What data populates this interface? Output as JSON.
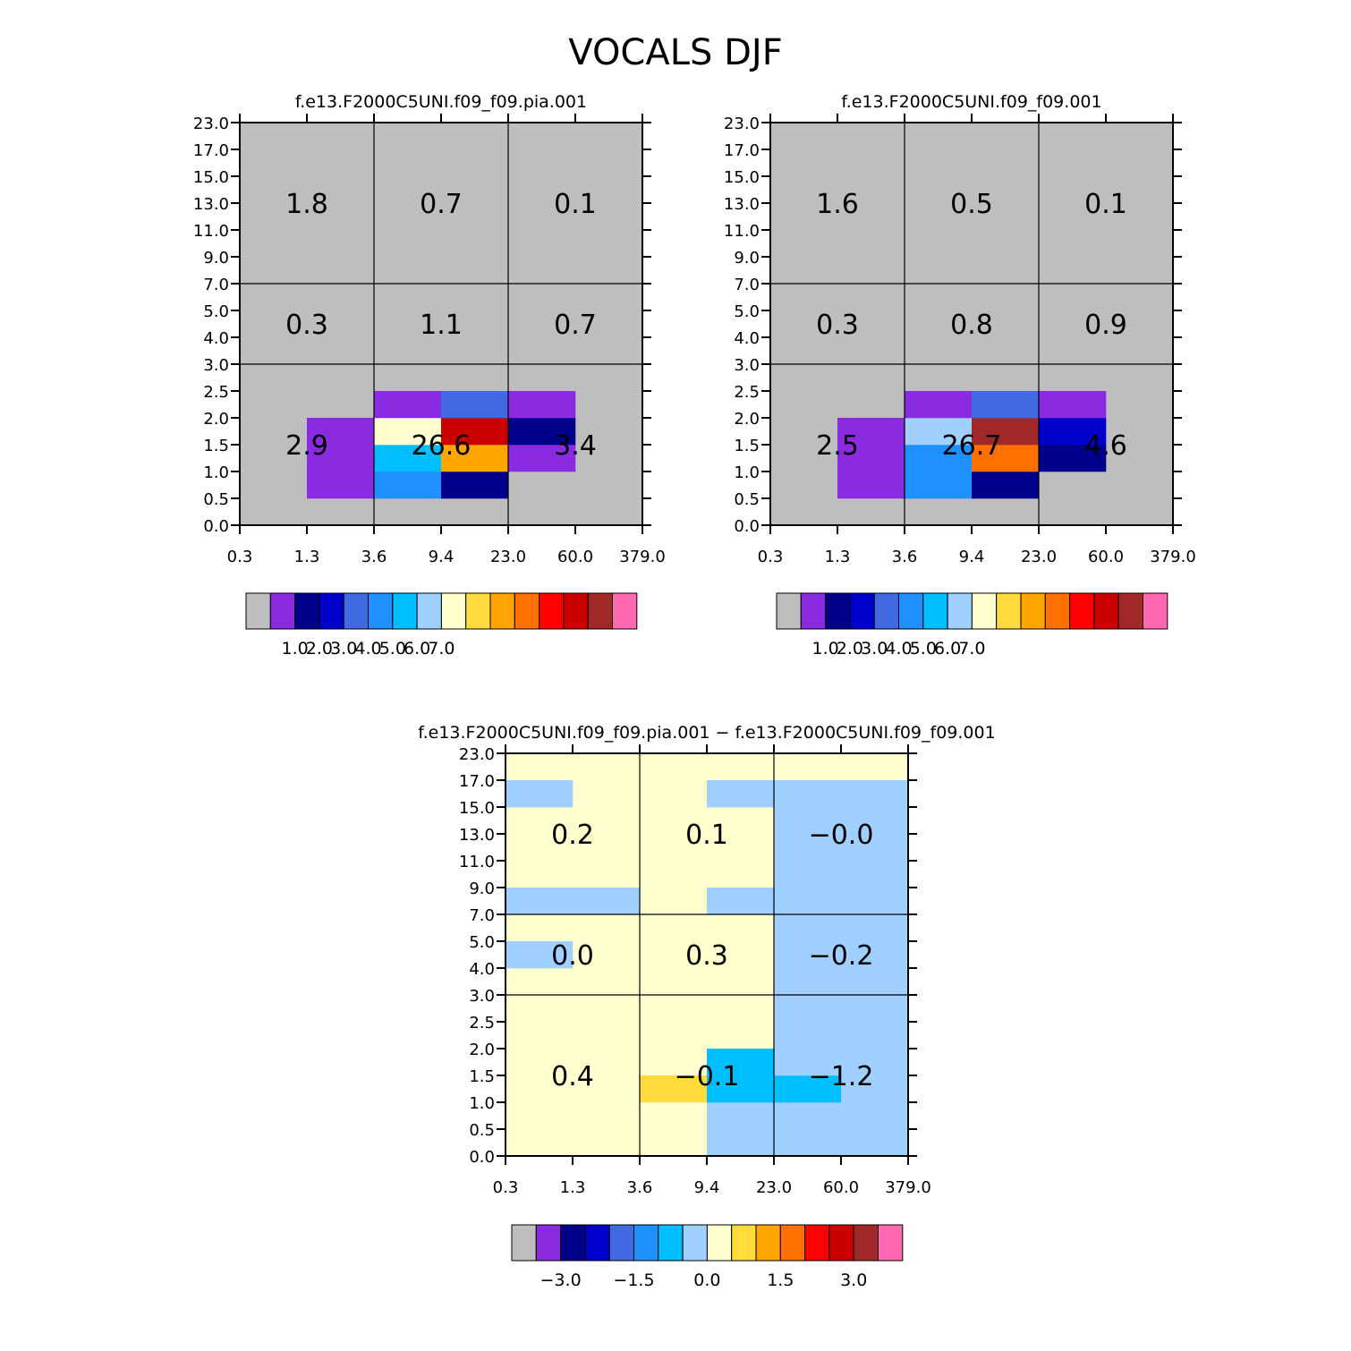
{
  "title": "VOCALS DJF",
  "chart_data": [
    {
      "type": "heatmap",
      "title": "f.e13.F2000C5UNI.f09_f09.pia.001",
      "x_bin_edges": [
        "0.3",
        "1.3",
        "3.6",
        "9.4",
        "23.0",
        "60.0",
        "379.0"
      ],
      "y_bin_edges": [
        "0.0",
        "0.5",
        "1.0",
        "1.5",
        "2.0",
        "2.5",
        "3.0",
        "4.0",
        "5.0",
        "7.0",
        "9.0",
        "11.0",
        "13.0",
        "15.0",
        "17.0",
        "23.0"
      ],
      "grid_lines": {
        "x": [
          2,
          4
        ],
        "y": [
          6,
          9
        ]
      },
      "region_values": [
        {
          "col": 0,
          "row": 2,
          "label": "1.8"
        },
        {
          "col": 1,
          "row": 2,
          "label": "0.7"
        },
        {
          "col": 2,
          "row": 2,
          "label": "0.1"
        },
        {
          "col": 0,
          "row": 1,
          "label": "0.3"
        },
        {
          "col": 1,
          "row": 1,
          "label": "1.1"
        },
        {
          "col": 2,
          "row": 1,
          "label": "0.7"
        },
        {
          "col": 0,
          "row": 0,
          "label": "2.9"
        },
        {
          "col": 1,
          "row": 0,
          "label": "26.6"
        },
        {
          "col": 2,
          "row": 0,
          "label": "3.4"
        }
      ],
      "background_color": 0,
      "cells": [
        {
          "x": 1,
          "y": 1,
          "c": 1
        },
        {
          "x": 1,
          "y": 2,
          "c": 1
        },
        {
          "x": 1,
          "y": 3,
          "c": 1
        },
        {
          "x": 2,
          "y": 1,
          "c": 5
        },
        {
          "x": 2,
          "y": 2,
          "c": 6
        },
        {
          "x": 2,
          "y": 3,
          "c": 8
        },
        {
          "x": 2,
          "y": 4,
          "c": 1
        },
        {
          "x": 3,
          "y": 1,
          "c": 2
        },
        {
          "x": 3,
          "y": 2,
          "c": 10
        },
        {
          "x": 3,
          "y": 3,
          "c": 13
        },
        {
          "x": 3,
          "y": 4,
          "c": 4
        },
        {
          "x": 4,
          "y": 2,
          "c": 1
        },
        {
          "x": 4,
          "y": 3,
          "c": 2
        },
        {
          "x": 4,
          "y": 4,
          "c": 1
        }
      ],
      "colorbar": {
        "colors": [
          "#bebebe",
          "#8a2be2",
          "#00008b",
          "#0000cd",
          "#4169e1",
          "#1e90ff",
          "#00bfff",
          "#a0d0ff",
          "#ffffd0",
          "#ffdc3c",
          "#ffa500",
          "#ff7000",
          "#ff0000",
          "#cd0000",
          "#a02828",
          "#ff69b4"
        ],
        "labels": [
          {
            "boundary": 2,
            "text": "1.0"
          },
          {
            "boundary": 3,
            "text": "2.0"
          },
          {
            "boundary": 4,
            "text": "3.0"
          },
          {
            "boundary": 5,
            "text": "4.0"
          },
          {
            "boundary": 6,
            "text": "5.0"
          },
          {
            "boundary": 7,
            "text": "6.0"
          },
          {
            "boundary": 8,
            "text": "7.0"
          }
        ]
      }
    },
    {
      "type": "heatmap",
      "title": "f.e13.F2000C5UNI.f09_f09.001",
      "x_bin_edges": [
        "0.3",
        "1.3",
        "3.6",
        "9.4",
        "23.0",
        "60.0",
        "379.0"
      ],
      "y_bin_edges": [
        "0.0",
        "0.5",
        "1.0",
        "1.5",
        "2.0",
        "2.5",
        "3.0",
        "4.0",
        "5.0",
        "7.0",
        "9.0",
        "11.0",
        "13.0",
        "15.0",
        "17.0",
        "23.0"
      ],
      "grid_lines": {
        "x": [
          2,
          4
        ],
        "y": [
          6,
          9
        ]
      },
      "region_values": [
        {
          "col": 0,
          "row": 2,
          "label": "1.6"
        },
        {
          "col": 1,
          "row": 2,
          "label": "0.5"
        },
        {
          "col": 2,
          "row": 2,
          "label": "0.1"
        },
        {
          "col": 0,
          "row": 1,
          "label": "0.3"
        },
        {
          "col": 1,
          "row": 1,
          "label": "0.8"
        },
        {
          "col": 2,
          "row": 1,
          "label": "0.9"
        },
        {
          "col": 0,
          "row": 0,
          "label": "2.5"
        },
        {
          "col": 1,
          "row": 0,
          "label": "26.7"
        },
        {
          "col": 2,
          "row": 0,
          "label": "4.6"
        }
      ],
      "background_color": 0,
      "cells": [
        {
          "x": 1,
          "y": 1,
          "c": 1
        },
        {
          "x": 1,
          "y": 2,
          "c": 1
        },
        {
          "x": 1,
          "y": 3,
          "c": 1
        },
        {
          "x": 2,
          "y": 1,
          "c": 5
        },
        {
          "x": 2,
          "y": 2,
          "c": 5
        },
        {
          "x": 2,
          "y": 3,
          "c": 7
        },
        {
          "x": 2,
          "y": 4,
          "c": 1
        },
        {
          "x": 3,
          "y": 1,
          "c": 2
        },
        {
          "x": 3,
          "y": 2,
          "c": 11
        },
        {
          "x": 3,
          "y": 3,
          "c": 14
        },
        {
          "x": 3,
          "y": 4,
          "c": 4
        },
        {
          "x": 4,
          "y": 2,
          "c": 2
        },
        {
          "x": 4,
          "y": 3,
          "c": 3
        },
        {
          "x": 4,
          "y": 4,
          "c": 1
        }
      ],
      "colorbar": {
        "colors": [
          "#bebebe",
          "#8a2be2",
          "#00008b",
          "#0000cd",
          "#4169e1",
          "#1e90ff",
          "#00bfff",
          "#a0d0ff",
          "#ffffd0",
          "#ffdc3c",
          "#ffa500",
          "#ff7000",
          "#ff0000",
          "#cd0000",
          "#a02828",
          "#ff69b4"
        ],
        "labels": [
          {
            "boundary": 2,
            "text": "1.0"
          },
          {
            "boundary": 3,
            "text": "2.0"
          },
          {
            "boundary": 4,
            "text": "3.0"
          },
          {
            "boundary": 5,
            "text": "4.0"
          },
          {
            "boundary": 6,
            "text": "5.0"
          },
          {
            "boundary": 7,
            "text": "6.0"
          },
          {
            "boundary": 8,
            "text": "7.0"
          }
        ]
      }
    },
    {
      "type": "heatmap",
      "title": "f.e13.F2000C5UNI.f09_f09.pia.001 − f.e13.F2000C5UNI.f09_f09.001",
      "x_bin_edges": [
        "0.3",
        "1.3",
        "3.6",
        "9.4",
        "23.0",
        "60.0",
        "379.0"
      ],
      "y_bin_edges": [
        "0.0",
        "0.5",
        "1.0",
        "1.5",
        "2.0",
        "2.5",
        "3.0",
        "4.0",
        "5.0",
        "7.0",
        "9.0",
        "11.0",
        "13.0",
        "15.0",
        "17.0",
        "23.0"
      ],
      "grid_lines": {
        "x": [
          2,
          4
        ],
        "y": [
          6,
          9
        ]
      },
      "region_values": [
        {
          "col": 0,
          "row": 2,
          "label": "0.2"
        },
        {
          "col": 1,
          "row": 2,
          "label": "0.1"
        },
        {
          "col": 2,
          "row": 2,
          "label": "−0.0"
        },
        {
          "col": 0,
          "row": 1,
          "label": "0.0"
        },
        {
          "col": 1,
          "row": 1,
          "label": "0.3"
        },
        {
          "col": 2,
          "row": 1,
          "label": "−0.2"
        },
        {
          "col": 0,
          "row": 0,
          "label": "0.4"
        },
        {
          "col": 1,
          "row": 0,
          "label": "−0.1"
        },
        {
          "col": 2,
          "row": 0,
          "label": "−1.2"
        }
      ],
      "background_color": 8,
      "cells": [
        {
          "x": 0,
          "y": 7,
          "c": 7
        },
        {
          "x": 0,
          "y": 9,
          "c": 7
        },
        {
          "x": 0,
          "y": 13,
          "c": 7
        },
        {
          "x": 1,
          "y": 9,
          "c": 7
        },
        {
          "x": 2,
          "y": 2,
          "c": 9
        },
        {
          "x": 3,
          "y": 0,
          "c": 7
        },
        {
          "x": 3,
          "y": 1,
          "c": 7
        },
        {
          "x": 3,
          "y": 2,
          "c": 6
        },
        {
          "x": 3,
          "y": 3,
          "c": 6
        },
        {
          "x": 3,
          "y": 9,
          "c": 7
        },
        {
          "x": 3,
          "y": 13,
          "c": 7
        },
        {
          "x": 4,
          "y": 0,
          "c": 7
        },
        {
          "x": 4,
          "y": 1,
          "c": 7
        },
        {
          "x": 4,
          "y": 2,
          "c": 6
        },
        {
          "x": 4,
          "y": 3,
          "c": 7
        },
        {
          "x": 4,
          "y": 4,
          "c": 7
        },
        {
          "x": 4,
          "y": 5,
          "c": 7
        },
        {
          "x": 4,
          "y": 6,
          "c": 7
        },
        {
          "x": 4,
          "y": 7,
          "c": 7
        },
        {
          "x": 4,
          "y": 8,
          "c": 7
        },
        {
          "x": 4,
          "y": 9,
          "c": 7
        },
        {
          "x": 4,
          "y": 10,
          "c": 7
        },
        {
          "x": 4,
          "y": 11,
          "c": 7
        },
        {
          "x": 4,
          "y": 12,
          "c": 7
        },
        {
          "x": 4,
          "y": 13,
          "c": 7
        },
        {
          "x": 5,
          "y": 0,
          "c": 7
        },
        {
          "x": 5,
          "y": 1,
          "c": 7
        },
        {
          "x": 5,
          "y": 2,
          "c": 7
        },
        {
          "x": 5,
          "y": 3,
          "c": 7
        },
        {
          "x": 5,
          "y": 4,
          "c": 7
        },
        {
          "x": 5,
          "y": 5,
          "c": 7
        },
        {
          "x": 5,
          "y": 6,
          "c": 7
        },
        {
          "x": 5,
          "y": 7,
          "c": 7
        },
        {
          "x": 5,
          "y": 8,
          "c": 7
        },
        {
          "x": 5,
          "y": 9,
          "c": 7
        },
        {
          "x": 5,
          "y": 10,
          "c": 7
        },
        {
          "x": 5,
          "y": 11,
          "c": 7
        },
        {
          "x": 5,
          "y": 12,
          "c": 7
        },
        {
          "x": 5,
          "y": 13,
          "c": 7
        }
      ],
      "colorbar": {
        "colors": [
          "#bebebe",
          "#8a2be2",
          "#00008b",
          "#0000cd",
          "#4169e1",
          "#1e90ff",
          "#00bfff",
          "#a0d0ff",
          "#ffffd0",
          "#ffdc3c",
          "#ffa500",
          "#ff7000",
          "#ff0000",
          "#cd0000",
          "#a02828",
          "#ff69b4"
        ],
        "labels": [
          {
            "boundary": 2,
            "text": "−3.0"
          },
          {
            "boundary": 5,
            "text": "−1.5"
          },
          {
            "boundary": 8,
            "text": "0.0"
          },
          {
            "boundary": 11,
            "text": "1.5"
          },
          {
            "boundary": 14,
            "text": "3.0"
          }
        ]
      }
    }
  ]
}
